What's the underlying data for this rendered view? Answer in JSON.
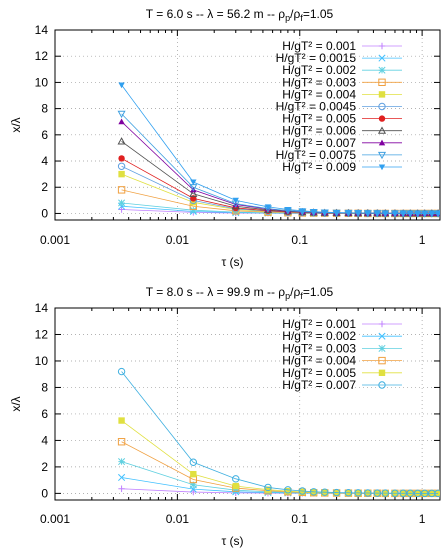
{
  "chart_data": [
    {
      "type": "scatter",
      "title": "T = 6.0 s -- λ = 56.2 m -- ρp/ρf=1.05",
      "title_parts": {
        "pre": "T = 6.0 s -- λ = 56.2 m -- ρ",
        "sub1": "p",
        "mid": "/ρ",
        "sub2": "f",
        "post": "=1.05"
      },
      "xlabel": "τ (s)",
      "ylabel": "x/λ",
      "xscale": "log",
      "xlim": [
        0.001,
        1.4
      ],
      "ylim": [
        -0.5,
        14
      ],
      "xticks": [
        0.001,
        0.01,
        0.1,
        1
      ],
      "xtick_labels": [
        "0.001",
        "0.01",
        "0.1",
        "1"
      ],
      "yticks": [
        0,
        2,
        4,
        6,
        8,
        10,
        12,
        14
      ],
      "ytick_labels": [
        "0",
        "2",
        "4",
        "6",
        "8",
        "10",
        "12",
        "14"
      ],
      "grid": true,
      "legend_position": "top-right",
      "x": [
        0.0035,
        0.0135,
        0.03,
        0.055,
        0.08,
        0.105,
        0.13,
        0.16,
        0.2,
        0.25,
        0.3,
        0.36,
        0.43,
        0.5,
        0.6,
        0.7,
        0.8,
        0.92,
        1.05,
        1.2,
        1.35
      ],
      "series": [
        {
          "name": "H/gT² = 0.001",
          "marker": "plus",
          "color": "#c080ff",
          "values": [
            0.3,
            0.08,
            0.03,
            0.02,
            0.01,
            0.01,
            0.01,
            0,
            0,
            0,
            0,
            0,
            0,
            0,
            0,
            0,
            0,
            0,
            0,
            0,
            0
          ]
        },
        {
          "name": "H/gT² = 0.0015",
          "marker": "cross",
          "color": "#40c0ff",
          "values": [
            0.55,
            0.15,
            0.06,
            0.03,
            0.02,
            0.01,
            0.01,
            0.01,
            0,
            0,
            0,
            0,
            0,
            0,
            0,
            0,
            0,
            0,
            0,
            0,
            0
          ]
        },
        {
          "name": "H/gT² = 0.002",
          "marker": "star",
          "color": "#60d0e0",
          "values": [
            0.8,
            0.25,
            0.1,
            0.05,
            0.03,
            0.02,
            0.01,
            0.01,
            0.01,
            0,
            0,
            0,
            0,
            0,
            0,
            0,
            0,
            0,
            0,
            0,
            0
          ]
        },
        {
          "name": "H/gT² = 0.003",
          "marker": "square",
          "color": "#f0a040",
          "values": [
            1.8,
            0.55,
            0.2,
            0.1,
            0.06,
            0.04,
            0.03,
            0.02,
            0.01,
            0.01,
            0.01,
            0,
            0,
            0,
            0,
            0,
            0,
            0,
            0,
            0,
            0
          ]
        },
        {
          "name": "H/gT² = 0.004",
          "marker": "squaref",
          "color": "#e0e040",
          "values": [
            3.0,
            0.85,
            0.3,
            0.15,
            0.09,
            0.06,
            0.04,
            0.03,
            0.02,
            0.01,
            0.01,
            0.01,
            0,
            0,
            0,
            0,
            0,
            0,
            0,
            0,
            0
          ]
        },
        {
          "name": "H/gT² = 0.0045",
          "marker": "circle",
          "color": "#60a0e0",
          "values": [
            3.6,
            1.0,
            0.35,
            0.18,
            0.1,
            0.07,
            0.05,
            0.03,
            0.02,
            0.02,
            0.01,
            0.01,
            0.01,
            0,
            0,
            0,
            0,
            0,
            0,
            0,
            0
          ]
        },
        {
          "name": "H/gT² = 0.005",
          "marker": "circlef",
          "color": "#e02020",
          "values": [
            4.2,
            1.15,
            0.42,
            0.21,
            0.12,
            0.08,
            0.06,
            0.04,
            0.03,
            0.02,
            0.02,
            0.01,
            0.01,
            0.01,
            0,
            0,
            0,
            0,
            0,
            0,
            0
          ]
        },
        {
          "name": "H/gT² = 0.006",
          "marker": "triangle",
          "color": "#505050",
          "values": [
            5.5,
            1.5,
            0.55,
            0.27,
            0.16,
            0.1,
            0.07,
            0.05,
            0.04,
            0.03,
            0.02,
            0.02,
            0.01,
            0.01,
            0.01,
            0,
            0,
            0,
            0,
            0,
            0
          ]
        },
        {
          "name": "H/gT² = 0.007",
          "marker": "trianglef",
          "color": "#8000a0",
          "values": [
            7.0,
            1.8,
            0.68,
            0.34,
            0.2,
            0.13,
            0.09,
            0.06,
            0.05,
            0.03,
            0.03,
            0.02,
            0.02,
            0.01,
            0.01,
            0.01,
            0,
            0,
            0,
            0,
            0
          ]
        },
        {
          "name": "H/gT² = 0.0075",
          "marker": "invtri",
          "color": "#40a0e0",
          "values": [
            7.6,
            2.0,
            0.75,
            0.37,
            0.22,
            0.14,
            0.1,
            0.07,
            0.05,
            0.04,
            0.03,
            0.02,
            0.02,
            0.01,
            0.01,
            0.01,
            0,
            0,
            0,
            0,
            0
          ]
        },
        {
          "name": "H/gT² = 0.009",
          "marker": "invtrif",
          "color": "#30a0f0",
          "values": [
            9.8,
            2.4,
            1.0,
            0.5,
            0.3,
            0.2,
            0.14,
            0.1,
            0.07,
            0.05,
            0.04,
            0.03,
            0.02,
            0.02,
            0.01,
            0.01,
            0.01,
            0,
            0,
            0,
            0
          ]
        }
      ]
    },
    {
      "type": "scatter",
      "title": "T = 8.0 s -- λ = 99.9 m -- ρp/ρf=1.05",
      "title_parts": {
        "pre": "T = 8.0 s -- λ = 99.9 m -- ρ",
        "sub1": "p",
        "mid": "/ρ",
        "sub2": "f",
        "post": "=1.05"
      },
      "xlabel": "τ (s)",
      "ylabel": "x/λ",
      "xscale": "log",
      "xlim": [
        0.001,
        1.4
      ],
      "ylim": [
        -0.5,
        14
      ],
      "xticks": [
        0.001,
        0.01,
        0.1,
        1
      ],
      "xtick_labels": [
        "0.001",
        "0.01",
        "0.1",
        "1"
      ],
      "yticks": [
        0,
        2,
        4,
        6,
        8,
        10,
        12,
        14
      ],
      "ytick_labels": [
        "0",
        "2",
        "4",
        "6",
        "8",
        "10",
        "12",
        "14"
      ],
      "grid": true,
      "legend_position": "top-right",
      "x": [
        0.0035,
        0.0135,
        0.03,
        0.055,
        0.08,
        0.105,
        0.13,
        0.16,
        0.2,
        0.25,
        0.3,
        0.36,
        0.43,
        0.5,
        0.6,
        0.7,
        0.8,
        0.92,
        1.05,
        1.2,
        1.35
      ],
      "series": [
        {
          "name": "H/gT² = 0.001",
          "marker": "plus",
          "color": "#c080ff",
          "values": [
            0.35,
            0.1,
            0.04,
            0.02,
            0.01,
            0.01,
            0.01,
            0,
            0,
            0,
            0,
            0,
            0,
            0,
            0,
            0,
            0,
            0,
            0,
            0,
            0
          ]
        },
        {
          "name": "H/gT² = 0.002",
          "marker": "cross",
          "color": "#40c0ff",
          "values": [
            1.2,
            0.32,
            0.12,
            0.06,
            0.03,
            0.02,
            0.01,
            0.01,
            0.01,
            0,
            0,
            0,
            0,
            0,
            0,
            0,
            0,
            0,
            0,
            0,
            0
          ]
        },
        {
          "name": "H/gT² = 0.003",
          "marker": "star",
          "color": "#60d0e0",
          "values": [
            2.4,
            0.65,
            0.24,
            0.12,
            0.07,
            0.05,
            0.03,
            0.02,
            0.02,
            0.01,
            0.01,
            0.01,
            0,
            0,
            0,
            0,
            0,
            0,
            0,
            0,
            0
          ]
        },
        {
          "name": "H/gT² = 0.004",
          "marker": "square",
          "color": "#f0a040",
          "values": [
            3.9,
            1.05,
            0.4,
            0.2,
            0.12,
            0.08,
            0.05,
            0.04,
            0.03,
            0.02,
            0.01,
            0.01,
            0.01,
            0,
            0,
            0,
            0,
            0,
            0,
            0,
            0
          ]
        },
        {
          "name": "H/gT² = 0.005",
          "marker": "squaref",
          "color": "#e0e040",
          "values": [
            5.5,
            1.45,
            0.55,
            0.28,
            0.17,
            0.11,
            0.08,
            0.05,
            0.04,
            0.03,
            0.02,
            0.02,
            0.01,
            0.01,
            0.01,
            0,
            0,
            0,
            0,
            0,
            0
          ]
        },
        {
          "name": "H/gT² = 0.007",
          "marker": "circle",
          "color": "#40b0e0",
          "values": [
            9.2,
            2.35,
            1.1,
            0.45,
            0.27,
            0.18,
            0.12,
            0.09,
            0.06,
            0.05,
            0.04,
            0.03,
            0.02,
            0.02,
            0.01,
            0.01,
            0.01,
            0,
            0,
            0,
            0
          ]
        }
      ]
    }
  ]
}
